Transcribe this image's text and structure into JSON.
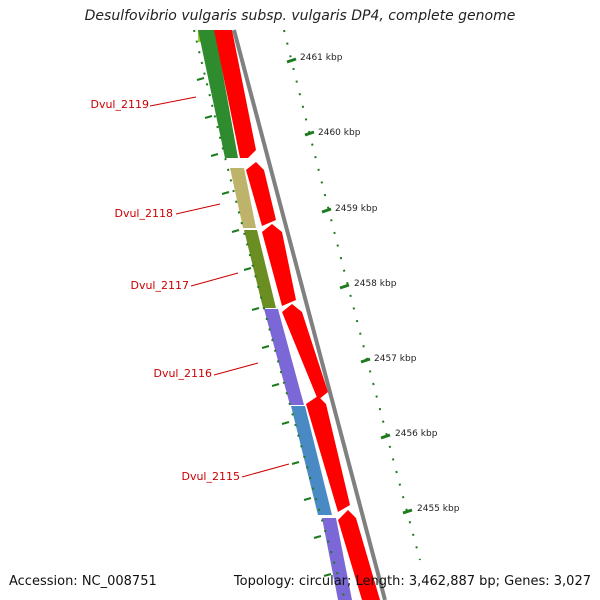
{
  "title": "Desulfovibrio vulgaris subsp. vulgaris DP4, complete genome",
  "footer": {
    "accession": "Accession: NC_008751",
    "info": "Topology: circular; Length: 3,462,887 bp; Genes: 3,027"
  },
  "genes": [
    {
      "name": "Dvul_2119",
      "color": "#2e8b2e"
    },
    {
      "name": "Dvul_2118",
      "color": "#bdb36a"
    },
    {
      "name": "Dvul_2117",
      "color": "#6b8e23"
    },
    {
      "name": "Dvul_2116",
      "color": "#7b68d6"
    },
    {
      "name": "Dvul_2115",
      "color": "#4a8ac4"
    }
  ],
  "ticks": [
    "2461 kbp",
    "2460 kbp",
    "2459 kbp",
    "2458 kbp",
    "2457 kbp",
    "2456 kbp",
    "2455 kbp"
  ],
  "colors": {
    "cds_strand": "#ff0000",
    "gene_label": "#cc0000",
    "backbone": "#808080",
    "tick_marks": "#1e7a1e"
  }
}
